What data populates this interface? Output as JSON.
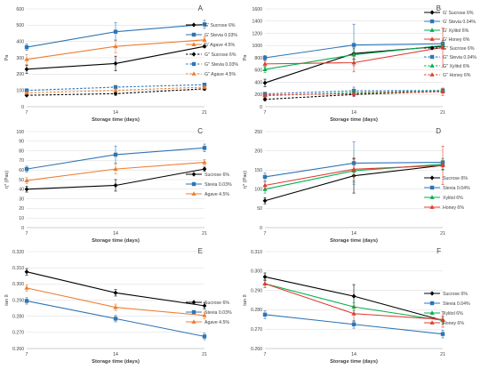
{
  "chart_data": [
    {
      "panel": "A",
      "type": "line",
      "x": [
        7,
        14,
        21
      ],
      "ylim": [
        0,
        600
      ],
      "yticks": [
        0,
        100,
        200,
        300,
        400,
        500,
        600
      ],
      "ylabel": "Pa",
      "xlabel": "Storage time (days)",
      "series": [
        {
          "name": "G' Sucrose 6%",
          "values": [
            230,
            265,
            370
          ],
          "err": [
            25,
            45,
            8
          ],
          "color": "#000000",
          "dashed": false,
          "marker": "diamond"
        },
        {
          "name": "G' Stevia 0.03%",
          "values": [
            365,
            460,
            505
          ],
          "err": [
            20,
            55,
            25
          ],
          "color": "#2e75b6",
          "dashed": false,
          "marker": "square"
        },
        {
          "name": "G' Agave 4.5%",
          "values": [
            290,
            370,
            410
          ],
          "err": [
            30,
            40,
            20
          ],
          "color": "#ed7d31",
          "dashed": false,
          "marker": "triangle"
        },
        {
          "name": "G'' Sucrose 6%",
          "values": [
            70,
            80,
            110
          ],
          "err": [
            5,
            10,
            10
          ],
          "color": "#000000",
          "dashed": true,
          "marker": "diamond"
        },
        {
          "name": "G'' Stevia 0.03%",
          "values": [
            100,
            120,
            135
          ],
          "err": [
            5,
            10,
            8
          ],
          "color": "#2e75b6",
          "dashed": true,
          "marker": "square"
        },
        {
          "name": "G'' Agave 4.5%",
          "values": [
            85,
            100,
            120
          ],
          "err": [
            5,
            8,
            8
          ],
          "color": "#ed7d31",
          "dashed": true,
          "marker": "triangle"
        }
      ]
    },
    {
      "panel": "B",
      "type": "line",
      "x": [
        7,
        14,
        21
      ],
      "ylim": [
        0,
        1600
      ],
      "yticks": [
        0,
        200,
        400,
        600,
        800,
        1000,
        1200,
        1400,
        1600
      ],
      "ylabel": "Pa",
      "xlabel": "Storage time (days)",
      "series": [
        {
          "name": "G' Sucrose 6%",
          "values": [
            390,
            870,
            990
          ],
          "err": [
            60,
            90,
            40
          ],
          "color": "#000000",
          "dashed": false,
          "marker": "diamond"
        },
        {
          "name": "G' Stevia 0.04%",
          "values": [
            800,
            1010,
            1030
          ],
          "err": [
            40,
            340,
            50
          ],
          "color": "#2e75b6",
          "dashed": false,
          "marker": "square"
        },
        {
          "name": "G' Xylitol 6%",
          "values": [
            610,
            850,
            1000
          ],
          "err": [
            50,
            80,
            60
          ],
          "color": "#00b050",
          "dashed": false,
          "marker": "triangle"
        },
        {
          "name": "G' Honey 6%",
          "values": [
            700,
            720,
            970
          ],
          "err": [
            50,
            150,
            320
          ],
          "color": "#e03c31",
          "dashed": false,
          "marker": "triangle"
        },
        {
          "name": "G'' Sucrose 6%",
          "values": [
            120,
            200,
            250
          ],
          "err": [
            20,
            30,
            20
          ],
          "color": "#000000",
          "dashed": true,
          "marker": "diamond"
        },
        {
          "name": "G'' Stevia 0.04%",
          "values": [
            210,
            260,
            265
          ],
          "err": [
            20,
            60,
            20
          ],
          "color": "#2e75b6",
          "dashed": true,
          "marker": "square"
        },
        {
          "name": "G'' Xylitol 6%",
          "values": [
            180,
            230,
            260
          ],
          "err": [
            20,
            40,
            30
          ],
          "color": "#00b050",
          "dashed": true,
          "marker": "triangle"
        },
        {
          "name": "G'' Honey 6%",
          "values": [
            190,
            215,
            245
          ],
          "err": [
            20,
            40,
            60
          ],
          "color": "#e03c31",
          "dashed": true,
          "marker": "triangle"
        }
      ]
    },
    {
      "panel": "C",
      "type": "line",
      "x": [
        7,
        14,
        21
      ],
      "ylim": [
        0,
        100
      ],
      "yticks": [
        0,
        10,
        20,
        30,
        40,
        50,
        60,
        70,
        80,
        90,
        100
      ],
      "ylabel": "η* (Pas)",
      "xlabel": "Storage time (days)",
      "series": [
        {
          "name": "Sucrose 6%",
          "values": [
            40,
            44,
            61
          ],
          "err": [
            3,
            6,
            2
          ],
          "color": "#000000",
          "dashed": false,
          "marker": "diamond"
        },
        {
          "name": "Stevia 0.03%",
          "values": [
            61,
            76,
            83
          ],
          "err": [
            3,
            9,
            4
          ],
          "color": "#2e75b6",
          "dashed": false,
          "marker": "square"
        },
        {
          "name": "Agave 4.5%",
          "values": [
            49,
            61,
            68
          ],
          "err": [
            3,
            5,
            3
          ],
          "color": "#ed7d31",
          "dashed": false,
          "marker": "triangle"
        }
      ]
    },
    {
      "panel": "D",
      "type": "line",
      "x": [
        7,
        14,
        21
      ],
      "ylim": [
        0,
        250
      ],
      "yticks": [
        0,
        50,
        100,
        150,
        200,
        250
      ],
      "ylabel": "η* (Pas)",
      "xlabel": "Storage time (days)",
      "series": [
        {
          "name": "Sucrose 6%",
          "values": [
            70,
            135,
            162
          ],
          "err": [
            8,
            45,
            10
          ],
          "color": "#000000",
          "dashed": false,
          "marker": "diamond"
        },
        {
          "name": "Stevia 0.04%",
          "values": [
            132,
            168,
            170
          ],
          "err": [
            10,
            55,
            10
          ],
          "color": "#2e75b6",
          "dashed": false,
          "marker": "square"
        },
        {
          "name": "Xylitol 6%",
          "values": [
            100,
            148,
            165
          ],
          "err": [
            10,
            30,
            15
          ],
          "color": "#00b050",
          "dashed": false,
          "marker": "triangle"
        },
        {
          "name": "Honey 6%",
          "values": [
            110,
            152,
            162
          ],
          "err": [
            10,
            30,
            50
          ],
          "color": "#e03c31",
          "dashed": false,
          "marker": "triangle"
        }
      ]
    },
    {
      "panel": "E",
      "type": "line",
      "x": [
        7,
        14,
        21
      ],
      "ylim": [
        0.26,
        0.32
      ],
      "yticks": [
        0.26,
        0.27,
        0.28,
        0.29,
        0.3,
        0.31,
        0.32
      ],
      "ylabel": "tan δ",
      "xlabel": "Storage time (days)",
      "series": [
        {
          "name": "Sucrose 6%",
          "values": [
            0.3075,
            0.2945,
            0.2865
          ],
          "err": [
            0.002,
            0.002,
            0.002
          ],
          "color": "#000000",
          "dashed": false,
          "marker": "diamond"
        },
        {
          "name": "Stevia 0.03%",
          "values": [
            0.2895,
            0.2785,
            0.2675
          ],
          "err": [
            0.002,
            0.002,
            0.002
          ],
          "color": "#2e75b6",
          "dashed": false,
          "marker": "square"
        },
        {
          "name": "Agave 4.5%",
          "values": [
            0.2975,
            0.2855,
            0.2805
          ],
          "err": [
            0.002,
            0.002,
            0.002
          ],
          "color": "#ed7d31",
          "dashed": false,
          "marker": "triangle"
        }
      ]
    },
    {
      "panel": "F",
      "type": "line",
      "x": [
        7,
        14,
        21
      ],
      "ylim": [
        0.26,
        0.31
      ],
      "yticks": [
        0.26,
        0.27,
        0.28,
        0.29,
        0.3,
        0.31
      ],
      "ylabel": "tan δ",
      "xlabel": "Storage time (days)",
      "series": [
        {
          "name": "Sucrose 6%",
          "values": [
            0.297,
            0.287,
            0.2745
          ],
          "err": [
            0.002,
            0.006,
            0.002
          ],
          "color": "#000000",
          "dashed": false,
          "marker": "diamond"
        },
        {
          "name": "Stevia 0.04%",
          "values": [
            0.2775,
            0.2725,
            0.2675
          ],
          "err": [
            0.002,
            0.002,
            0.002
          ],
          "color": "#2e75b6",
          "dashed": false,
          "marker": "square"
        },
        {
          "name": "Xylitol 6%",
          "values": [
            0.2935,
            0.2815,
            0.2745
          ],
          "err": [
            0.002,
            0.002,
            0.002
          ],
          "color": "#00b050",
          "dashed": false,
          "marker": "triangle"
        },
        {
          "name": "Honey 6%",
          "values": [
            0.2935,
            0.278,
            0.275
          ],
          "err": [
            0.002,
            0.004,
            0.004
          ],
          "color": "#e03c31",
          "dashed": false,
          "marker": "triangle"
        }
      ]
    }
  ]
}
